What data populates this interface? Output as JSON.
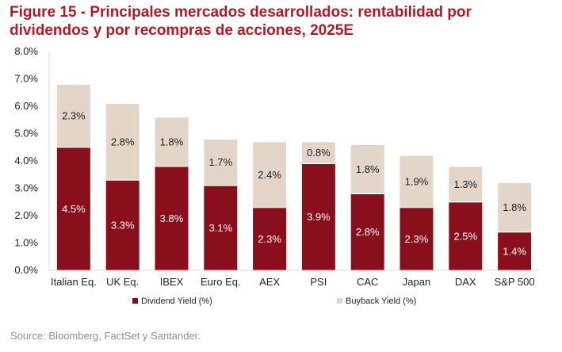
{
  "figure": {
    "title_line1": "Figure 15 - Principales mercados desarrollados: rentabilidad por",
    "title_line2": "dividendos y por recompras de acciones, 2025E",
    "source": "Source: Bloomberg, FactSet y Santander."
  },
  "chart_data": {
    "type": "bar",
    "stacked": true,
    "categories": [
      "Italian Eq.",
      "UK Eq.",
      "IBEX",
      "Euro Eq.",
      "AEX",
      "PSI",
      "CAC",
      "Japan",
      "DAX",
      "S&P 500"
    ],
    "series": [
      {
        "name": "Dividend Yield (%)",
        "color": "#8a0f1c",
        "values": [
          4.5,
          3.3,
          3.8,
          3.1,
          2.3,
          3.9,
          2.8,
          2.3,
          2.5,
          1.4
        ],
        "labels": [
          "4.5%",
          "3.3%",
          "3.8%",
          "3.1%",
          "2.3%",
          "3.9%",
          "2.8%",
          "2.3%",
          "2.5%",
          "1.4%"
        ]
      },
      {
        "name": "Buyback Yield (%)",
        "color": "#e3d6c9",
        "values": [
          2.3,
          2.8,
          1.8,
          1.7,
          2.4,
          0.8,
          1.8,
          1.9,
          1.3,
          1.8
        ],
        "labels": [
          "2.3%",
          "2.8%",
          "1.8%",
          "1.7%",
          "2.4%",
          "0.8%",
          "1.8%",
          "1.9%",
          "1.3%",
          "1.8%"
        ]
      }
    ],
    "ylim": [
      0,
      8
    ],
    "yticks": [
      0,
      1,
      2,
      3,
      4,
      5,
      6,
      7,
      8
    ],
    "ytick_labels": [
      "0.0%",
      "1.0%",
      "2.0%",
      "3.0%",
      "4.0%",
      "5.0%",
      "6.0%",
      "7.0%",
      "8.0%"
    ],
    "xlabel": "",
    "ylabel": "",
    "grid": false,
    "legend_position": "bottom"
  }
}
